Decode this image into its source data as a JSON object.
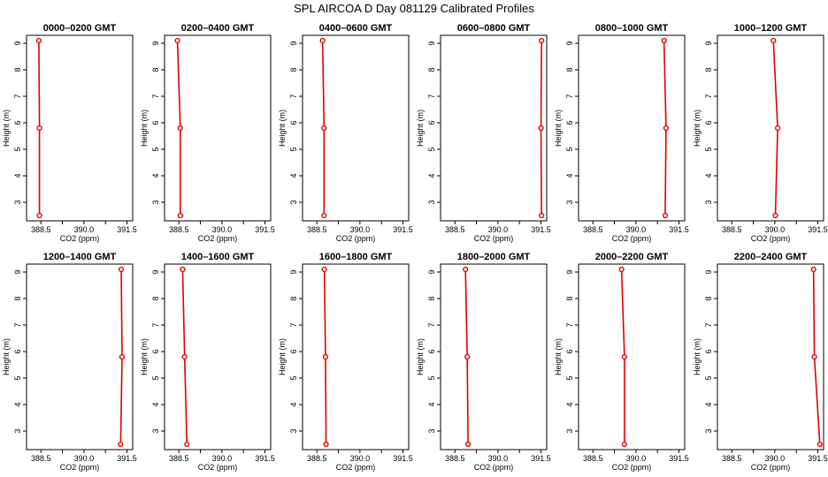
{
  "title": "SPL AIRCOA D  Day 081129  Calibrated Profiles",
  "colors": {
    "series": "#e00000",
    "axes": "#000000"
  },
  "chart_data": [
    {
      "type": "line",
      "title": "0000–0200 GMT",
      "xlabel": "CO2 (ppm)",
      "ylabel": "Height (m)",
      "xlim": [
        388.0,
        391.7
      ],
      "ylim": [
        2.3,
        9.3
      ],
      "xticks": [
        "388.5",
        "390.0",
        "391.5"
      ],
      "yticks": [
        "3",
        "4",
        "5",
        "6",
        "7",
        "8",
        "9"
      ],
      "grid": false,
      "x": [
        388.45,
        388.45,
        388.43
      ],
      "y": [
        2.5,
        5.8,
        9.1
      ]
    },
    {
      "type": "line",
      "title": "0200–0400 GMT",
      "xlabel": "CO2 (ppm)",
      "ylabel": "Height (m)",
      "xlim": [
        388.0,
        391.7
      ],
      "ylim": [
        2.3,
        9.3
      ],
      "xticks": [
        "388.5",
        "390.0",
        "391.5"
      ],
      "yticks": [
        "3",
        "4",
        "5",
        "6",
        "7",
        "8",
        "9"
      ],
      "grid": false,
      "x": [
        388.55,
        388.55,
        388.45
      ],
      "y": [
        2.5,
        5.8,
        9.1
      ]
    },
    {
      "type": "line",
      "title": "0400–0600 GMT",
      "xlabel": "CO2 (ppm)",
      "ylabel": "Height (m)",
      "xlim": [
        388.0,
        391.7
      ],
      "ylim": [
        2.3,
        9.3
      ],
      "xticks": [
        "388.5",
        "390.0",
        "391.5"
      ],
      "yticks": [
        "3",
        "4",
        "5",
        "6",
        "7",
        "8",
        "9"
      ],
      "grid": false,
      "x": [
        388.75,
        388.75,
        388.7
      ],
      "y": [
        2.5,
        5.8,
        9.1
      ]
    },
    {
      "type": "line",
      "title": "0600–0800 GMT",
      "xlabel": "CO2 (ppm)",
      "ylabel": "Height (m)",
      "xlim": [
        388.0,
        391.7
      ],
      "ylim": [
        2.3,
        9.3
      ],
      "xticks": [
        "388.5",
        "390.0",
        "391.5"
      ],
      "yticks": [
        "3",
        "4",
        "5",
        "6",
        "7",
        "8",
        "9"
      ],
      "grid": false,
      "x": [
        391.52,
        391.5,
        391.52
      ],
      "y": [
        2.5,
        5.8,
        9.1
      ]
    },
    {
      "type": "line",
      "title": "0800–1000 GMT",
      "xlabel": "CO2 (ppm)",
      "ylabel": "Height (m)",
      "xlim": [
        388.0,
        391.7
      ],
      "ylim": [
        2.3,
        9.3
      ],
      "xticks": [
        "388.5",
        "390.0",
        "391.5"
      ],
      "yticks": [
        "3",
        "4",
        "5",
        "6",
        "7",
        "8",
        "9"
      ],
      "grid": false,
      "x": [
        391.02,
        391.05,
        390.98
      ],
      "y": [
        2.5,
        5.8,
        9.1
      ]
    },
    {
      "type": "line",
      "title": "1000–1200 GMT",
      "xlabel": "CO2 (ppm)",
      "ylabel": "Height (m)",
      "xlim": [
        388.0,
        391.7
      ],
      "ylim": [
        2.3,
        9.3
      ],
      "xticks": [
        "388.5",
        "390.0",
        "391.5"
      ],
      "yticks": [
        "3",
        "4",
        "5",
        "6",
        "7",
        "8",
        "9"
      ],
      "grid": false,
      "x": [
        390.02,
        390.1,
        389.95
      ],
      "y": [
        2.5,
        5.8,
        9.1
      ]
    },
    {
      "type": "line",
      "title": "1200–1400 GMT",
      "xlabel": "CO2 (ppm)",
      "ylabel": "Height (m)",
      "xlim": [
        388.0,
        391.7
      ],
      "ylim": [
        2.3,
        9.3
      ],
      "xticks": [
        "388.5",
        "390.0",
        "391.5"
      ],
      "yticks": [
        "3",
        "4",
        "5",
        "6",
        "7",
        "8",
        "9"
      ],
      "grid": false,
      "x": [
        391.28,
        391.33,
        391.3
      ],
      "y": [
        2.5,
        5.8,
        9.1
      ]
    },
    {
      "type": "line",
      "title": "1400–1600 GMT",
      "xlabel": "CO2 (ppm)",
      "ylabel": "Height (m)",
      "xlim": [
        388.0,
        391.7
      ],
      "ylim": [
        2.3,
        9.3
      ],
      "xticks": [
        "388.5",
        "390.0",
        "391.5"
      ],
      "yticks": [
        "3",
        "4",
        "5",
        "6",
        "7",
        "8",
        "9"
      ],
      "grid": false,
      "x": [
        388.78,
        388.7,
        388.63
      ],
      "y": [
        2.5,
        5.8,
        9.1
      ]
    },
    {
      "type": "line",
      "title": "1600–1800 GMT",
      "xlabel": "CO2 (ppm)",
      "ylabel": "Height (m)",
      "xlim": [
        388.0,
        391.7
      ],
      "ylim": [
        2.3,
        9.3
      ],
      "xticks": [
        "388.5",
        "390.0",
        "391.5"
      ],
      "yticks": [
        "3",
        "4",
        "5",
        "6",
        "7",
        "8",
        "9"
      ],
      "grid": false,
      "x": [
        388.82,
        388.8,
        388.76
      ],
      "y": [
        2.5,
        5.8,
        9.1
      ]
    },
    {
      "type": "line",
      "title": "1800–2000 GMT",
      "xlabel": "CO2 (ppm)",
      "ylabel": "Height (m)",
      "xlim": [
        388.0,
        391.7
      ],
      "ylim": [
        2.3,
        9.3
      ],
      "xticks": [
        "388.5",
        "390.0",
        "391.5"
      ],
      "yticks": [
        "3",
        "4",
        "5",
        "6",
        "7",
        "8",
        "9"
      ],
      "grid": false,
      "x": [
        388.96,
        388.93,
        388.87
      ],
      "y": [
        2.5,
        5.8,
        9.1
      ]
    },
    {
      "type": "line",
      "title": "2000–2200 GMT",
      "xlabel": "CO2 (ppm)",
      "ylabel": "Height (m)",
      "xlim": [
        388.0,
        391.7
      ],
      "ylim": [
        2.3,
        9.3
      ],
      "xticks": [
        "388.5",
        "390.0",
        "391.5"
      ],
      "yticks": [
        "3",
        "4",
        "5",
        "6",
        "7",
        "8",
        "9"
      ],
      "grid": false,
      "x": [
        389.6,
        389.6,
        389.5
      ],
      "y": [
        2.5,
        5.8,
        9.1
      ]
    },
    {
      "type": "line",
      "title": "2200–2400 GMT",
      "xlabel": "CO2 (ppm)",
      "ylabel": "Height (m)",
      "xlim": [
        388.0,
        391.7
      ],
      "ylim": [
        2.3,
        9.3
      ],
      "xticks": [
        "388.5",
        "390.0",
        "391.5"
      ],
      "yticks": [
        "3",
        "4",
        "5",
        "6",
        "7",
        "8",
        "9"
      ],
      "grid": false,
      "x": [
        391.57,
        391.38,
        391.35
      ],
      "y": [
        2.5,
        5.8,
        9.1
      ]
    }
  ]
}
